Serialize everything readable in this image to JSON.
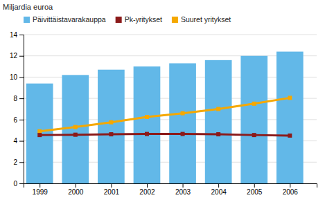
{
  "chart_data": {
    "type": "bar",
    "y_label": "Miljardia euroa",
    "x": [
      1999,
      2000,
      2001,
      2002,
      2003,
      2004,
      2005,
      2006
    ],
    "xlim": [
      1998.55,
      2006.75
    ],
    "xticks": [
      1999,
      2000,
      2001,
      2002,
      2003,
      2004,
      2005,
      2006
    ],
    "ylim": [
      0,
      14
    ],
    "yticks": [
      0,
      2,
      4,
      6,
      8,
      10,
      12,
      14
    ],
    "grid": true,
    "legend": "upper left",
    "series": [
      {
        "name": "Päivittäistavarakauppa",
        "type": "bar",
        "color": "#62B8E8",
        "values": [
          9.4,
          10.2,
          10.7,
          11.0,
          11.3,
          11.6,
          12.0,
          12.4
        ]
      },
      {
        "name": "Pk-yritykset",
        "type": "line",
        "color": "#8B1A1A",
        "marker": "square",
        "values": [
          4.55,
          4.58,
          4.62,
          4.65,
          4.65,
          4.62,
          4.55,
          4.5
        ]
      },
      {
        "name": "Suuret yritykset",
        "type": "line",
        "color": "#F5A800",
        "marker": "square",
        "values": [
          4.9,
          5.3,
          5.75,
          6.25,
          6.6,
          7.0,
          7.5,
          8.05
        ]
      }
    ]
  }
}
